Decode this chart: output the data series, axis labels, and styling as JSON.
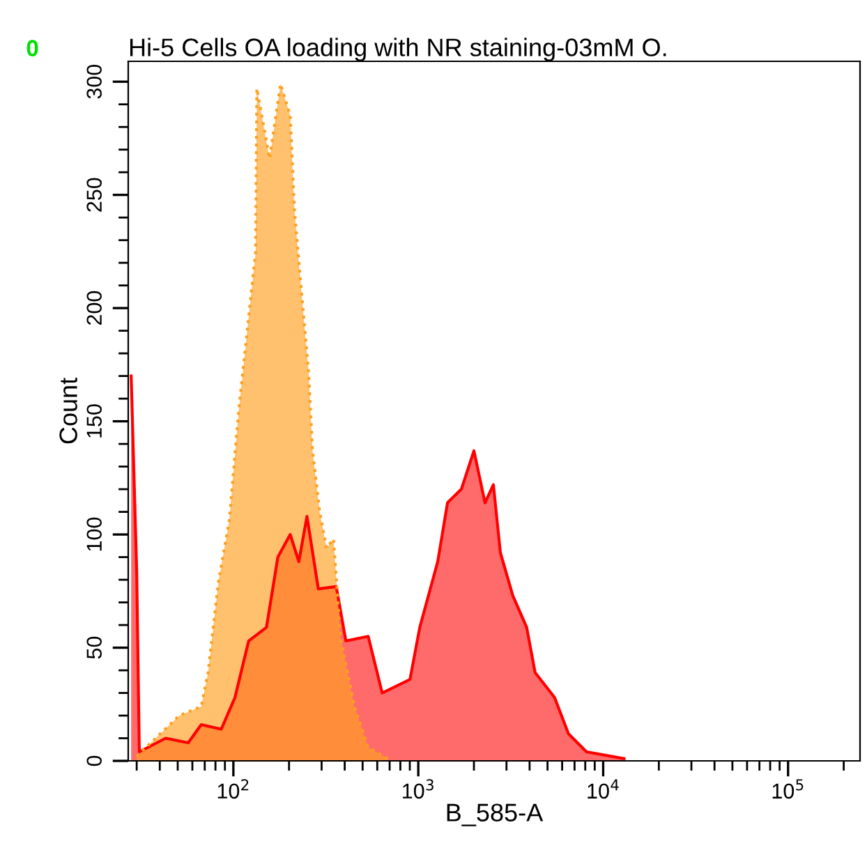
{
  "chart_data": {
    "type": "area",
    "title": "Hi-5 Cells OA loading with NR staining-03mM O.",
    "xlabel": "B_585-A",
    "ylabel": "Count",
    "annotations": [
      "0"
    ],
    "log": "x",
    "xlim": [
      27,
      245000
    ],
    "ylim": [
      0,
      309
    ],
    "xticks": [
      {
        "value": 100,
        "label": "10$^{2}$"
      },
      {
        "value": 1000,
        "label": "10$^{3}$"
      },
      {
        "value": 10000,
        "label": "10$^{4}$"
      },
      {
        "value": 100000,
        "label": "10$^{5}$"
      }
    ],
    "yticks": [
      0,
      50,
      100,
      150,
      200,
      250,
      300
    ],
    "grid": false,
    "legend": false,
    "series": [
      {
        "color": "#ff0000",
        "line_style": "solid",
        "x": [
          28,
          30,
          31,
          43,
          57,
          67,
          86,
          102,
          121,
          151,
          174,
          203,
          226,
          250,
          288,
          360,
          406,
          536,
          638,
          902,
          1019,
          1274,
          1439,
          1710,
          2000,
          2296,
          2548,
          2780,
          3246,
          3857,
          4285,
          5461,
          6486,
          8128,
          12970
        ],
        "values": [
          170,
          84,
          4,
          10,
          8,
          16,
          14,
          28,
          53,
          59,
          90,
          100,
          88,
          108,
          76,
          77,
          53,
          55,
          30,
          36,
          59,
          88,
          114,
          120,
          137,
          114,
          122,
          92,
          73,
          59,
          39,
          28,
          12,
          4,
          1
        ]
      },
      {
        "color": "#ffa020",
        "line_style": "dotted",
        "x": [
          30,
          51,
          67,
          73,
          83,
          95,
          107,
          121,
          132,
          134,
          157,
          180,
          203,
          214,
          233,
          255,
          268,
          293,
          319,
          348,
          379,
          451,
          536,
          684
        ],
        "values": [
          2,
          20,
          24,
          39,
          79,
          106,
          155,
          196,
          225,
          297,
          266,
          299,
          285,
          243,
          208,
          172,
          137,
          110,
          94,
          98,
          55,
          24,
          6,
          1
        ]
      }
    ]
  }
}
